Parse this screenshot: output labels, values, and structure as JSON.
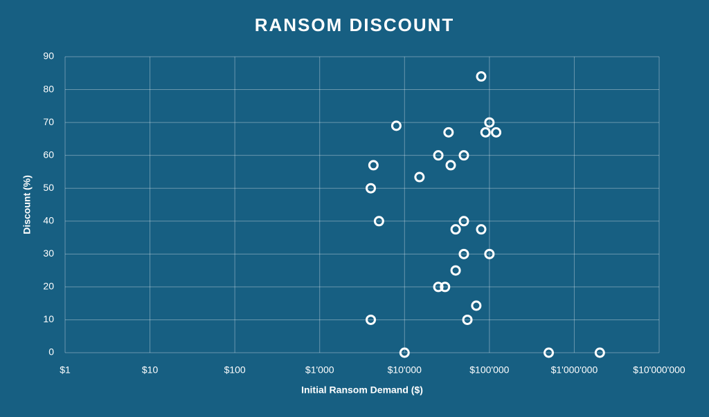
{
  "chart_data": {
    "type": "scatter",
    "title": "RANSOM DISCOUNT",
    "x_label": "Initial Ransom Demand ($)",
    "y_label": "Discount (%)",
    "x_scale": "log",
    "grid": true,
    "color": "#ffffff",
    "background": "#175f82",
    "xlim": [
      1,
      10000000
    ],
    "xticks": [
      {
        "value": 1,
        "label": "$1"
      },
      {
        "value": 10,
        "label": "$10"
      },
      {
        "value": 100,
        "label": "$100"
      },
      {
        "value": 1000,
        "label": "$1'000"
      },
      {
        "value": 10000,
        "label": "$10'000"
      },
      {
        "value": 100000,
        "label": "$100'000"
      },
      {
        "value": 1000000,
        "label": "$1'000'000"
      },
      {
        "value": 10000000,
        "label": "$10'000'000"
      }
    ],
    "ylim": [
      0,
      90
    ],
    "yticks": [
      0,
      10,
      20,
      30,
      40,
      50,
      60,
      70,
      80,
      90
    ],
    "x": [
      80000,
      100000,
      8000,
      33000,
      90000,
      120000,
      25000,
      50000,
      4300,
      35000,
      15000,
      4000,
      5000,
      50000,
      40000,
      80000,
      50000,
      100000,
      40000,
      25000,
      30000,
      70000,
      4000,
      55000,
      10000,
      500000,
      2000000
    ],
    "values": [
      84,
      70,
      69,
      67,
      67,
      67,
      60,
      60,
      57,
      57,
      53.4,
      50,
      40,
      40,
      37.5,
      37.5,
      30,
      30,
      25,
      20,
      20,
      14.3,
      10,
      10,
      0,
      0,
      0
    ]
  }
}
